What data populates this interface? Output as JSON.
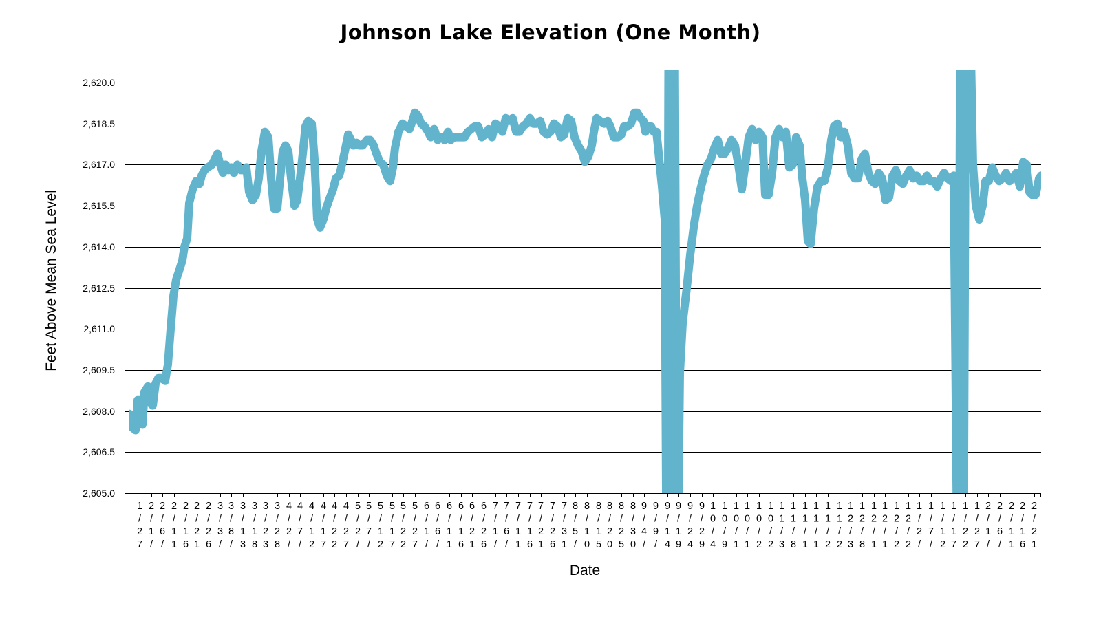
{
  "chart_data": {
    "type": "line",
    "title": "Johnson Lake Elevation (One Month)",
    "xlabel": "Date",
    "ylabel": "Feet Above Mean Sea Level",
    "ylim": [
      2605,
      2620.7
    ],
    "xlim": [
      -4.8,
      393
    ],
    "x_unit": "days since first tick (1/27)",
    "grid": true,
    "line_color": "#62b4cd",
    "y_ticks": [
      2605,
      2606.5,
      2608,
      2609.5,
      2611,
      2612.5,
      2614,
      2615.5,
      2617,
      2618.5,
      2620
    ],
    "y_tick_labels": [
      "2,605.0",
      "2,606.5",
      "2,608.0",
      "2,609.5",
      "2,611.0",
      "2,612.5",
      "2,614.0",
      "2,615.5",
      "2,617.0",
      "2,618.5",
      "2,620.0"
    ],
    "x_tick_step_days": 5,
    "x_tick_labels": [
      "1/27",
      "2/1/",
      "2/6/",
      "2/11",
      "2/16",
      "2/21",
      "2/26",
      "3/3/",
      "3/8/",
      "3/13",
      "3/18",
      "3/23",
      "3/28",
      "4/2/",
      "4/7/",
      "4/12",
      "4/17",
      "4/22",
      "4/27",
      "5/2/",
      "5/7/",
      "5/12",
      "5/17",
      "5/22",
      "5/27",
      "6/1/",
      "6/6/",
      "6/11",
      "6/16",
      "6/21",
      "6/26",
      "7/1/",
      "7/6/",
      "7/11",
      "7/16",
      "7/21",
      "7/26",
      "7/31",
      "8/5/",
      "8/10",
      "8/15",
      "8/20",
      "8/25",
      "8/30",
      "9/4/",
      "9/9/",
      "9/14",
      "9/19",
      "9/24",
      "9/29",
      "10/4",
      "10/9",
      "10/1",
      "10/1",
      "10/2",
      "10/2",
      "11/3",
      "11/8",
      "11/1",
      "11/1",
      "11/2",
      "11/2",
      "12/3",
      "12/8",
      "12/1",
      "12/1",
      "12/2",
      "12/2",
      "1/2/",
      "1/7/",
      "1/12",
      "1/17",
      "1/22",
      "1/27",
      "2/1/",
      "2/6/",
      "2/11",
      "2/16",
      "2/21"
    ],
    "series": [
      {
        "name": "Elevation",
        "points": [
          [
            -4.5,
            2607.9
          ],
          [
            -3.3,
            2607.4
          ],
          [
            -1.8,
            2607.3
          ],
          [
            -0.9,
            2608.4
          ],
          [
            0.3,
            2608.4
          ],
          [
            1.2,
            2607.5
          ],
          [
            2.1,
            2608.7
          ],
          [
            3.6,
            2608.9
          ],
          [
            4.5,
            2608.3
          ],
          [
            5.7,
            2608.2
          ],
          [
            6.9,
            2609.0
          ],
          [
            8.1,
            2609.2
          ],
          [
            9.6,
            2609.2
          ],
          [
            11.1,
            2609.1
          ],
          [
            12.3,
            2609.7
          ],
          [
            13.5,
            2611.0
          ],
          [
            14.7,
            2612.2
          ],
          [
            15.9,
            2612.8
          ],
          [
            17.1,
            2613.1
          ],
          [
            18.6,
            2613.5
          ],
          [
            19.5,
            2614.0
          ],
          [
            20.7,
            2614.3
          ],
          [
            21.6,
            2615.6
          ],
          [
            23.1,
            2616.1
          ],
          [
            24.6,
            2616.4
          ],
          [
            26.1,
            2616.3
          ],
          [
            27.0,
            2616.6
          ],
          [
            28.2,
            2616.8
          ],
          [
            29.7,
            2616.9
          ],
          [
            31.5,
            2617.0
          ],
          [
            32.7,
            2617.2
          ],
          [
            33.9,
            2617.4
          ],
          [
            35.1,
            2617.0
          ],
          [
            36.3,
            2616.7
          ],
          [
            37.5,
            2617.0
          ],
          [
            38.7,
            2616.8
          ],
          [
            39.9,
            2616.9
          ],
          [
            41.1,
            2616.7
          ],
          [
            42.6,
            2617.0
          ],
          [
            44.1,
            2616.8
          ],
          [
            45.6,
            2616.8
          ],
          [
            46.5,
            2616.9
          ],
          [
            47.7,
            2616.0
          ],
          [
            49.2,
            2615.7
          ],
          [
            50.7,
            2615.9
          ],
          [
            51.9,
            2616.5
          ],
          [
            53.1,
            2617.5
          ],
          [
            54.6,
            2618.2
          ],
          [
            56.1,
            2618.0
          ],
          [
            57.3,
            2616.5
          ],
          [
            58.5,
            2615.4
          ],
          [
            60.0,
            2615.4
          ],
          [
            61.2,
            2616.5
          ],
          [
            62.4,
            2617.5
          ],
          [
            63.6,
            2617.7
          ],
          [
            64.8,
            2617.5
          ],
          [
            66.0,
            2616.5
          ],
          [
            67.5,
            2615.5
          ],
          [
            68.7,
            2615.7
          ],
          [
            69.9,
            2616.5
          ],
          [
            71.1,
            2617.4
          ],
          [
            72.3,
            2618.4
          ],
          [
            73.5,
            2618.6
          ],
          [
            75.0,
            2618.5
          ],
          [
            76.2,
            2617.2
          ],
          [
            77.4,
            2615.0
          ],
          [
            78.6,
            2614.7
          ],
          [
            80.1,
            2615.0
          ],
          [
            81.3,
            2615.4
          ],
          [
            82.5,
            2615.7
          ],
          [
            84.3,
            2616.1
          ],
          [
            85.5,
            2616.5
          ],
          [
            87.0,
            2616.6
          ],
          [
            88.2,
            2617.0
          ],
          [
            89.7,
            2617.6
          ],
          [
            90.9,
            2618.1
          ],
          [
            92.1,
            2617.9
          ],
          [
            93.3,
            2617.7
          ],
          [
            94.5,
            2617.8
          ],
          [
            95.7,
            2617.7
          ],
          [
            97.2,
            2617.7
          ],
          [
            99.0,
            2617.9
          ],
          [
            100.5,
            2617.9
          ],
          [
            102.0,
            2617.7
          ],
          [
            103.2,
            2617.4
          ],
          [
            104.7,
            2617.1
          ],
          [
            106.2,
            2617.0
          ],
          [
            107.7,
            2616.6
          ],
          [
            109.2,
            2616.4
          ],
          [
            110.4,
            2616.9
          ],
          [
            111.3,
            2617.6
          ],
          [
            112.8,
            2618.2
          ],
          [
            114.6,
            2618.5
          ],
          [
            116.1,
            2618.4
          ],
          [
            117.6,
            2618.3
          ],
          [
            118.5,
            2618.5
          ],
          [
            120.0,
            2618.9
          ],
          [
            121.2,
            2618.8
          ],
          [
            122.7,
            2618.5
          ],
          [
            124.2,
            2618.4
          ],
          [
            125.7,
            2618.2
          ],
          [
            126.9,
            2618.0
          ],
          [
            128.4,
            2618.3
          ],
          [
            129.9,
            2617.9
          ],
          [
            131.4,
            2618.0
          ],
          [
            132.9,
            2617.9
          ],
          [
            134.4,
            2618.2
          ],
          [
            135.6,
            2617.9
          ],
          [
            137.1,
            2618.0
          ],
          [
            140.1,
            2618.0
          ],
          [
            141.6,
            2618.0
          ],
          [
            143.1,
            2618.2
          ],
          [
            144.6,
            2618.3
          ],
          [
            146.1,
            2618.4
          ],
          [
            147.6,
            2618.4
          ],
          [
            149.1,
            2618.0
          ],
          [
            150.6,
            2618.1
          ],
          [
            152.1,
            2618.3
          ],
          [
            153.6,
            2618.0
          ],
          [
            155.1,
            2618.5
          ],
          [
            156.6,
            2618.4
          ],
          [
            158.1,
            2618.2
          ],
          [
            159.6,
            2618.7
          ],
          [
            161.1,
            2618.6
          ],
          [
            162.6,
            2618.7
          ],
          [
            164.1,
            2618.2
          ],
          [
            165.6,
            2618.2
          ],
          [
            167.1,
            2618.4
          ],
          [
            168.6,
            2618.5
          ],
          [
            170.1,
            2618.7
          ],
          [
            171.6,
            2618.5
          ],
          [
            173.1,
            2618.5
          ],
          [
            174.6,
            2618.6
          ],
          [
            176.1,
            2618.2
          ],
          [
            177.6,
            2618.1
          ],
          [
            179.1,
            2618.2
          ],
          [
            180.6,
            2618.5
          ],
          [
            182.1,
            2618.4
          ],
          [
            183.6,
            2618.0
          ],
          [
            185.1,
            2618.1
          ],
          [
            186.6,
            2618.7
          ],
          [
            188.1,
            2618.6
          ],
          [
            189.6,
            2618.0
          ],
          [
            191.1,
            2617.7
          ],
          [
            192.6,
            2617.5
          ],
          [
            194.1,
            2617.1
          ],
          [
            195.6,
            2617.3
          ],
          [
            197.1,
            2617.7
          ],
          [
            198.0,
            2618.2
          ],
          [
            199.2,
            2618.7
          ],
          [
            200.7,
            2618.6
          ],
          [
            202.5,
            2618.5
          ],
          [
            204.0,
            2618.6
          ],
          [
            205.2,
            2618.4
          ],
          [
            206.7,
            2618.0
          ],
          [
            208.5,
            2618.0
          ],
          [
            210.0,
            2618.1
          ],
          [
            211.2,
            2618.4
          ],
          [
            212.7,
            2618.4
          ],
          [
            214.2,
            2618.5
          ],
          [
            215.7,
            2618.9
          ],
          [
            216.9,
            2618.9
          ],
          [
            218.4,
            2618.7
          ],
          [
            219.6,
            2618.6
          ],
          [
            220.5,
            2618.2
          ],
          [
            221.7,
            2618.4
          ],
          [
            222.9,
            2618.4
          ],
          [
            224.1,
            2618.2
          ],
          [
            225.3,
            2618.2
          ],
          [
            226.5,
            2617.2
          ],
          [
            227.7,
            2616.2
          ],
          [
            228.9,
            2615.0
          ],
          [
            229.8,
            2600
          ],
          [
            230.7,
            2625
          ],
          [
            231.9,
            2600
          ],
          [
            233.1,
            2625
          ],
          [
            234.3,
            2600
          ],
          [
            235.5,
            2609.4
          ],
          [
            236.7,
            2611.2
          ],
          [
            238.5,
            2612.5
          ],
          [
            240.0,
            2613.7
          ],
          [
            241.5,
            2614.7
          ],
          [
            243.0,
            2615.5
          ],
          [
            244.5,
            2616.1
          ],
          [
            246.0,
            2616.6
          ],
          [
            247.5,
            2617.0
          ],
          [
            249.0,
            2617.2
          ],
          [
            250.5,
            2617.6
          ],
          [
            252.0,
            2617.9
          ],
          [
            253.5,
            2617.4
          ],
          [
            255.0,
            2617.4
          ],
          [
            256.5,
            2617.6
          ],
          [
            258.0,
            2617.9
          ],
          [
            259.5,
            2617.7
          ],
          [
            261.0,
            2617.0
          ],
          [
            262.5,
            2616.1
          ],
          [
            264.0,
            2617.0
          ],
          [
            265.5,
            2618.0
          ],
          [
            267.0,
            2618.3
          ],
          [
            268.5,
            2617.9
          ],
          [
            270.0,
            2618.2
          ],
          [
            271.5,
            2618.0
          ],
          [
            272.7,
            2615.9
          ],
          [
            274.2,
            2615.9
          ],
          [
            275.7,
            2616.7
          ],
          [
            277.2,
            2618.0
          ],
          [
            278.7,
            2618.3
          ],
          [
            280.2,
            2618.0
          ],
          [
            281.7,
            2618.2
          ],
          [
            283.2,
            2616.9
          ],
          [
            284.7,
            2617.0
          ],
          [
            286.2,
            2618.0
          ],
          [
            287.7,
            2617.7
          ],
          [
            288.9,
            2616.5
          ],
          [
            290.1,
            2615.7
          ],
          [
            291.3,
            2614.2
          ],
          [
            292.5,
            2614.1
          ],
          [
            294.0,
            2615.4
          ],
          [
            295.5,
            2616.2
          ],
          [
            297.0,
            2616.4
          ],
          [
            298.5,
            2616.4
          ],
          [
            300.0,
            2616.9
          ],
          [
            301.5,
            2617.9
          ],
          [
            302.7,
            2618.4
          ],
          [
            304.2,
            2618.5
          ],
          [
            305.7,
            2618.0
          ],
          [
            307.2,
            2618.2
          ],
          [
            308.7,
            2617.7
          ],
          [
            310.2,
            2616.7
          ],
          [
            311.7,
            2616.5
          ],
          [
            313.2,
            2616.5
          ],
          [
            314.7,
            2617.2
          ],
          [
            316.2,
            2617.4
          ],
          [
            317.7,
            2616.7
          ],
          [
            319.2,
            2616.4
          ],
          [
            320.7,
            2616.3
          ],
          [
            322.2,
            2616.7
          ],
          [
            323.7,
            2616.5
          ],
          [
            325.2,
            2615.7
          ],
          [
            326.7,
            2615.8
          ],
          [
            328.2,
            2616.6
          ],
          [
            329.7,
            2616.8
          ],
          [
            331.2,
            2616.4
          ],
          [
            332.7,
            2616.3
          ],
          [
            334.2,
            2616.6
          ],
          [
            335.7,
            2616.8
          ],
          [
            337.2,
            2616.5
          ],
          [
            338.7,
            2616.6
          ],
          [
            340.2,
            2616.4
          ],
          [
            341.7,
            2616.4
          ],
          [
            343.2,
            2616.6
          ],
          [
            344.7,
            2616.4
          ],
          [
            346.2,
            2616.4
          ],
          [
            347.7,
            2616.2
          ],
          [
            349.2,
            2616.5
          ],
          [
            350.7,
            2616.7
          ],
          [
            352.2,
            2616.5
          ],
          [
            353.7,
            2616.4
          ],
          [
            354.9,
            2616.6
          ],
          [
            356.7,
            2600
          ],
          [
            357.9,
            2625
          ],
          [
            359.1,
            2600
          ],
          [
            360.3,
            2625
          ],
          [
            361.5,
            2625
          ],
          [
            363.3,
            2617.0
          ],
          [
            364.5,
            2615.5
          ],
          [
            366.0,
            2615.0
          ],
          [
            367.5,
            2615.5
          ],
          [
            368.7,
            2616.4
          ],
          [
            370.2,
            2616.4
          ],
          [
            371.7,
            2616.9
          ],
          [
            373.2,
            2616.6
          ],
          [
            374.7,
            2616.4
          ],
          [
            376.2,
            2616.5
          ],
          [
            377.7,
            2616.7
          ],
          [
            379.2,
            2616.4
          ],
          [
            380.7,
            2616.5
          ],
          [
            382.2,
            2616.7
          ],
          [
            383.7,
            2616.2
          ],
          [
            385.2,
            2617.1
          ],
          [
            386.7,
            2617.0
          ],
          [
            387.9,
            2616.0
          ],
          [
            389.1,
            2615.9
          ],
          [
            390.6,
            2615.9
          ],
          [
            392.1,
            2616.5
          ],
          [
            393.0,
            2616.6
          ]
        ]
      }
    ]
  }
}
